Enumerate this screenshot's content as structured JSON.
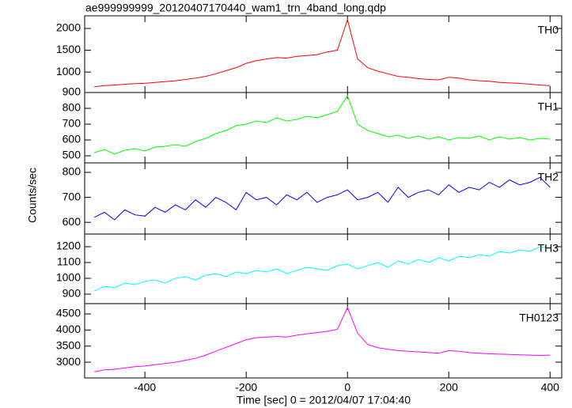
{
  "title": "ae999999999_20120407170440_wam1_trn_4band_long.qdp",
  "xlabel": "Time [sec] 0 = 2012/04/07 17:04:40",
  "ylabel": "Counts/sec",
  "chart_data": [
    {
      "type": "line",
      "xlim": [
        -519,
        423
      ],
      "ylim": [
        530,
        2290
      ],
      "yticks": [
        1000,
        1500,
        2000
      ],
      "x": [
        -500,
        -480,
        -460,
        -440,
        -420,
        -400,
        -380,
        -360,
        -340,
        -320,
        -300,
        -280,
        -260,
        -240,
        -220,
        -200,
        -180,
        -160,
        -140,
        -120,
        -100,
        -80,
        -60,
        -40,
        -20,
        0,
        20,
        40,
        60,
        80,
        100,
        120,
        140,
        160,
        180,
        200,
        220,
        240,
        260,
        280,
        300,
        320,
        340,
        360,
        380,
        400
      ],
      "series": [
        {
          "name": "TH0",
          "color": "#ff0000",
          "values": [
            660,
            690,
            700,
            720,
            735,
            740,
            760,
            780,
            800,
            830,
            860,
            900,
            960,
            1030,
            1100,
            1200,
            1260,
            1300,
            1330,
            1320,
            1360,
            1380,
            1400,
            1460,
            1500,
            2200,
            1300,
            1100,
            1020,
            960,
            900,
            880,
            850,
            830,
            820,
            880,
            860,
            820,
            800,
            790,
            760,
            750,
            740,
            720,
            700,
            690
          ]
        }
      ]
    },
    {
      "type": "line",
      "xlim": [
        -519,
        423
      ],
      "ylim": [
        455,
        900
      ],
      "yticks": [
        500,
        600,
        700,
        800,
        900
      ],
      "x": [
        -500,
        -480,
        -460,
        -440,
        -420,
        -400,
        -380,
        -360,
        -340,
        -320,
        -300,
        -280,
        -260,
        -240,
        -220,
        -200,
        -180,
        -160,
        -140,
        -120,
        -100,
        -80,
        -60,
        -40,
        -20,
        0,
        20,
        40,
        60,
        80,
        100,
        120,
        140,
        160,
        180,
        200,
        220,
        240,
        260,
        280,
        300,
        320,
        340,
        360,
        380,
        400
      ],
      "series": [
        {
          "name": "TH1",
          "color": "#00ff00",
          "values": [
            520,
            540,
            510,
            535,
            545,
            530,
            555,
            560,
            570,
            560,
            590,
            610,
            640,
            660,
            690,
            700,
            720,
            710,
            740,
            720,
            730,
            750,
            740,
            760,
            780,
            880,
            700,
            660,
            640,
            620,
            630,
            610,
            625,
            605,
            620,
            600,
            615,
            610,
            625,
            600,
            620,
            605,
            615,
            600,
            610,
            605
          ]
        }
      ]
    },
    {
      "type": "line",
      "xlim": [
        -519,
        423
      ],
      "ylim": [
        553,
        838
      ],
      "yticks": [
        600,
        700,
        800
      ],
      "x": [
        -500,
        -480,
        -460,
        -440,
        -420,
        -400,
        -380,
        -360,
        -340,
        -320,
        -300,
        -280,
        -260,
        -240,
        -220,
        -200,
        -180,
        -160,
        -140,
        -120,
        -100,
        -80,
        -60,
        -40,
        -20,
        0,
        20,
        40,
        60,
        80,
        100,
        120,
        140,
        160,
        180,
        200,
        220,
        240,
        260,
        280,
        300,
        320,
        340,
        360,
        380,
        400
      ],
      "series": [
        {
          "name": "TH2",
          "color": "#0000ff",
          "values": [
            620,
            640,
            610,
            650,
            630,
            625,
            660,
            640,
            670,
            650,
            690,
            660,
            700,
            680,
            650,
            720,
            690,
            700,
            670,
            710,
            690,
            720,
            680,
            700,
            710,
            730,
            690,
            700,
            720,
            680,
            740,
            700,
            720,
            730,
            710,
            750,
            720,
            740,
            730,
            760,
            740,
            770,
            750,
            760,
            780,
            740
          ]
        }
      ]
    },
    {
      "type": "line",
      "xlim": [
        -519,
        423
      ],
      "ylim": [
        840,
        1280
      ],
      "yticks": [
        900,
        1000,
        1100,
        1200
      ],
      "x": [
        -500,
        -480,
        -460,
        -440,
        -420,
        -400,
        -380,
        -360,
        -340,
        -320,
        -300,
        -280,
        -260,
        -240,
        -220,
        -200,
        -180,
        -160,
        -140,
        -120,
        -100,
        -80,
        -60,
        -40,
        -20,
        0,
        20,
        40,
        60,
        80,
        100,
        120,
        140,
        160,
        180,
        200,
        220,
        240,
        260,
        280,
        300,
        320,
        340,
        360,
        380,
        400
      ],
      "series": [
        {
          "name": "TH3",
          "color": "#00ffff",
          "values": [
            920,
            950,
            940,
            970,
            960,
            980,
            990,
            970,
            1000,
            1010,
            990,
            1020,
            1030,
            1010,
            1040,
            1030,
            1050,
            1040,
            1060,
            1030,
            1050,
            1070,
            1060,
            1050,
            1080,
            1090,
            1060,
            1080,
            1100,
            1070,
            1110,
            1090,
            1120,
            1100,
            1130,
            1110,
            1140,
            1130,
            1150,
            1140,
            1170,
            1160,
            1180,
            1170,
            1200,
            1190
          ]
        }
      ]
    },
    {
      "type": "line",
      "xlim": [
        -519,
        423
      ],
      "ylim": [
        2510,
        4820
      ],
      "yticks": [
        3000,
        3500,
        4000,
        4500
      ],
      "xticks": [
        -400,
        -200,
        0,
        200,
        400
      ],
      "x": [
        -500,
        -480,
        -460,
        -440,
        -420,
        -400,
        -380,
        -360,
        -340,
        -320,
        -300,
        -280,
        -260,
        -240,
        -220,
        -200,
        -180,
        -160,
        -140,
        -120,
        -100,
        -80,
        -60,
        -40,
        -20,
        0,
        20,
        40,
        60,
        80,
        100,
        120,
        140,
        160,
        180,
        200,
        220,
        240,
        260,
        280,
        300,
        320,
        340,
        360,
        380,
        400
      ],
      "series": [
        {
          "name": "TH0123",
          "color": "#ff00ff",
          "values": [
            2700,
            2760,
            2780,
            2820,
            2860,
            2880,
            2920,
            2960,
            3000,
            3060,
            3120,
            3220,
            3340,
            3460,
            3580,
            3700,
            3760,
            3780,
            3800,
            3780,
            3840,
            3880,
            3920,
            3960,
            4020,
            4700,
            3900,
            3550,
            3450,
            3400,
            3360,
            3340,
            3320,
            3300,
            3280,
            3360,
            3340,
            3300,
            3280,
            3260,
            3250,
            3240,
            3230,
            3220,
            3210,
            3220
          ]
        }
      ]
    }
  ]
}
